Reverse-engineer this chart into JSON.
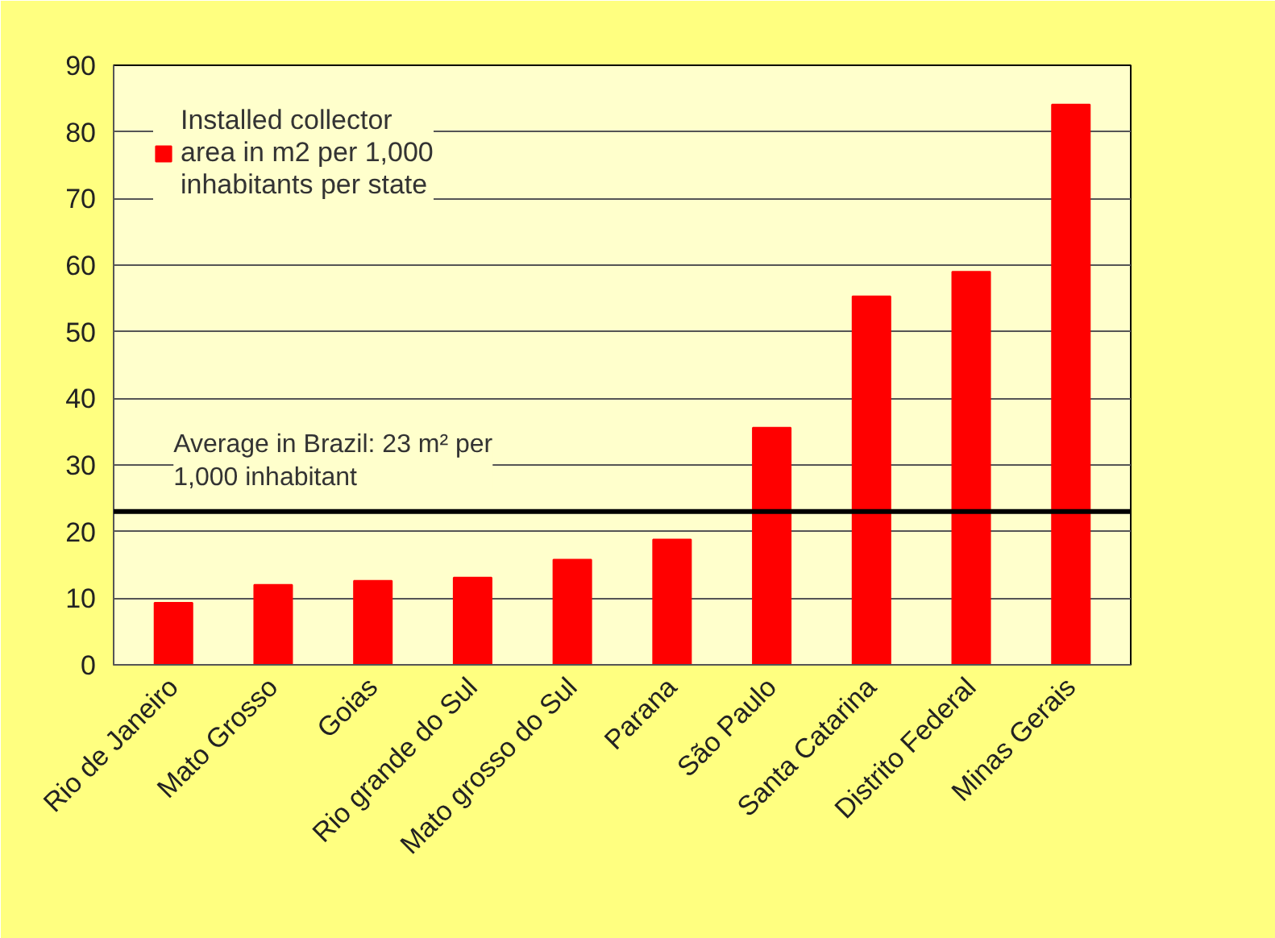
{
  "chart_data": {
    "type": "bar",
    "categories": [
      "Rio de Janeiro",
      "Mato Grosso",
      "Goias",
      "Rio grande do Sul",
      "Mato grosso do Sul",
      "Parana",
      "São Paulo",
      "Santa Catarina",
      "Distrito Federal",
      "Minas Gerais"
    ],
    "series": [
      {
        "name": "Installed collector area in m2 per 1,000 inhabitants per state",
        "color": "#ff0000",
        "values": [
          9.3,
          12.0,
          12.6,
          13.1,
          15.8,
          18.8,
          35.6,
          55.3,
          59.0,
          84.1
        ]
      }
    ],
    "ylim": [
      0,
      90
    ],
    "yticks": [
      0,
      10,
      20,
      30,
      40,
      50,
      60,
      70,
      80,
      90
    ],
    "grid": "y",
    "legend": "top left",
    "ref_lines": [
      {
        "axis": "y",
        "value": 23,
        "label": "Average in Brazil: 23 m² per 1,000 inhabitant",
        "color": "#000000"
      }
    ]
  }
}
